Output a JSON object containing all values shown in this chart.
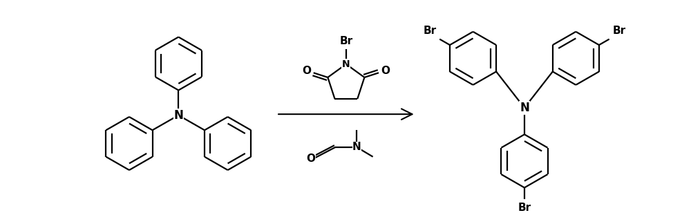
{
  "background_color": "#ffffff",
  "figure_width": 10.0,
  "figure_height": 3.24,
  "dpi": 100,
  "line_color": "#000000",
  "line_width": 1.6,
  "xlim": [
    0,
    10
  ],
  "ylim": [
    0,
    3.24
  ]
}
